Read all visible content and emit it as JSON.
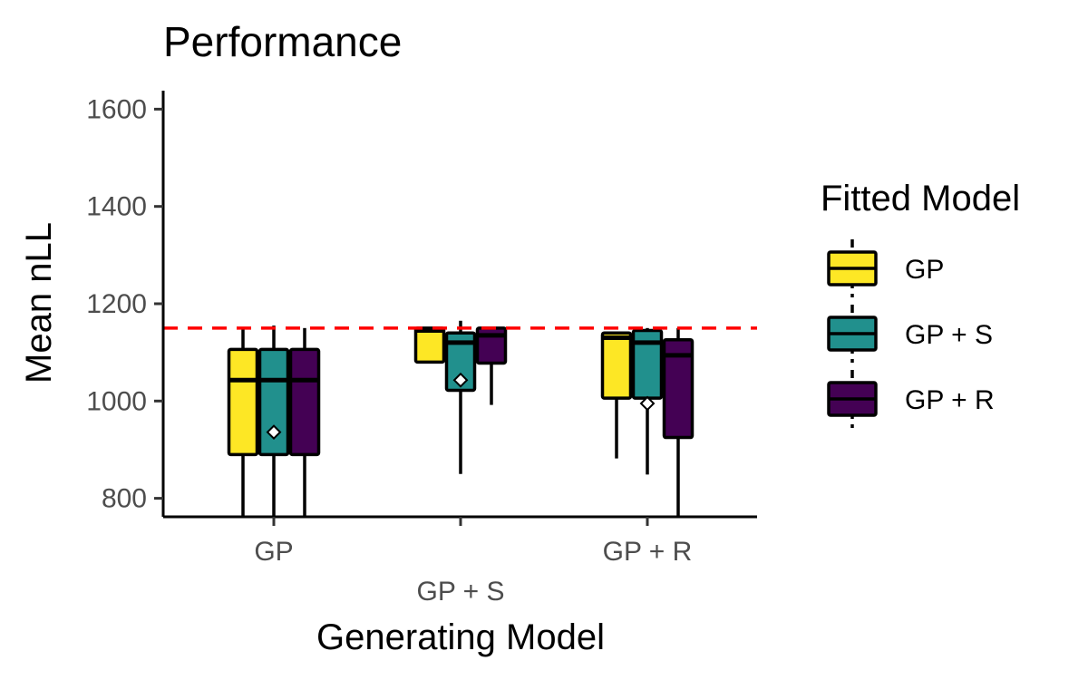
{
  "chart_data": {
    "type": "boxplot",
    "title": "Performance",
    "xlabel": "Generating Model",
    "ylabel": "Mean nLL",
    "ylim": [
      762,
      1638
    ],
    "yticks": [
      800,
      1000,
      1200,
      1400,
      1600
    ],
    "categories": [
      "GP",
      "GP + S",
      "GP + R"
    ],
    "legend": {
      "title": "Fitted Model",
      "position": "right"
    },
    "reference_line": {
      "y": 1150,
      "color": "#ff0000",
      "style": "dashed"
    },
    "series": [
      {
        "name": "GP",
        "color": "#fde725",
        "boxes": [
          {
            "whisker_low": 762,
            "q1": 890,
            "median": 1043,
            "q3": 1106,
            "whisker_high": 1150
          },
          {
            "whisker_low": 1080,
            "q1": 1080,
            "median": 1145,
            "q3": 1150,
            "whisker_high": 1150
          },
          {
            "whisker_low": 882,
            "q1": 1006,
            "median": 1130,
            "q3": 1140,
            "whisker_high": 1140
          }
        ]
      },
      {
        "name": "GP + S",
        "color": "#21908d",
        "boxes": [
          {
            "whisker_low": 762,
            "q1": 890,
            "median": 1043,
            "q3": 1106,
            "whisker_high": 1155,
            "mean": 936
          },
          {
            "whisker_low": 850,
            "q1": 1022,
            "median": 1120,
            "q3": 1140,
            "whisker_high": 1165,
            "mean": 1043
          },
          {
            "whisker_low": 849,
            "q1": 1006,
            "median": 1120,
            "q3": 1145,
            "whisker_high": 1150,
            "mean": 995
          }
        ]
      },
      {
        "name": "GP + R",
        "color": "#440154",
        "boxes": [
          {
            "whisker_low": 762,
            "q1": 890,
            "median": 1043,
            "q3": 1106,
            "whisker_high": 1150
          },
          {
            "whisker_low": 992,
            "q1": 1078,
            "median": 1135,
            "q3": 1150,
            "whisker_high": 1150
          },
          {
            "whisker_low": 762,
            "q1": 925,
            "median": 1094,
            "q3": 1126,
            "whisker_high": 1150
          }
        ]
      }
    ]
  }
}
